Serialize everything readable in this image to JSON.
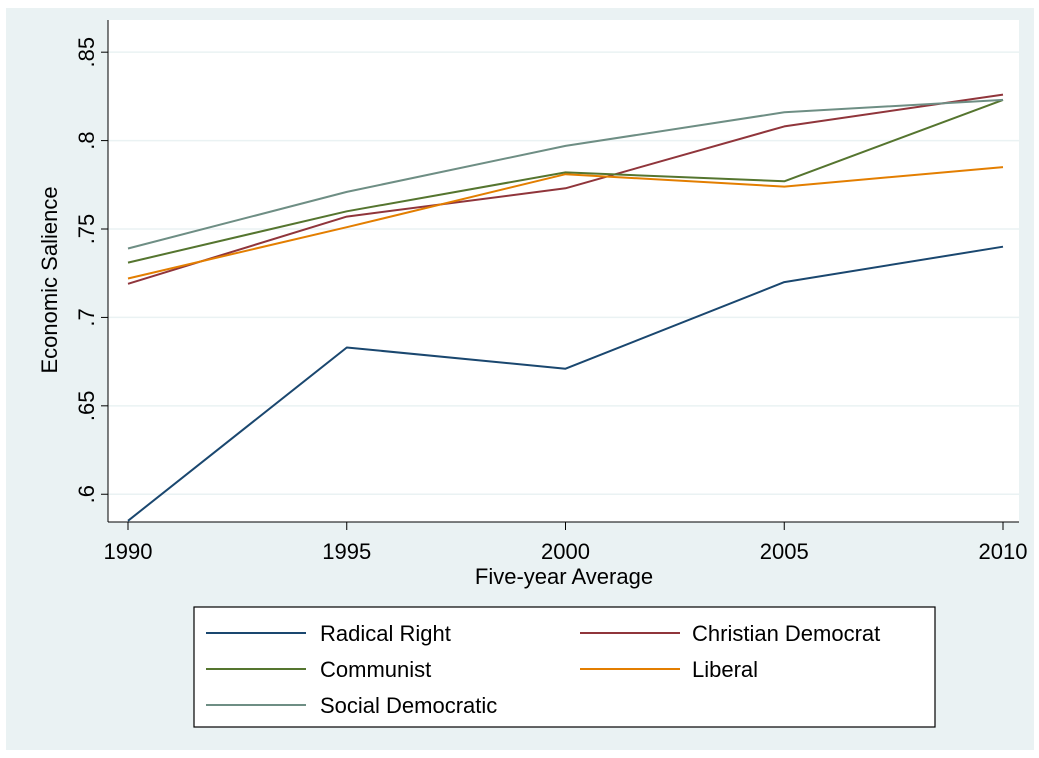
{
  "chart_data": {
    "type": "line",
    "x": [
      1990,
      1995,
      2000,
      2005,
      2010
    ],
    "xticks": [
      "1990",
      "1995",
      "2000",
      "2005",
      "2010"
    ],
    "yticks": [
      ".6",
      ".65",
      ".7",
      ".75",
      ".8",
      ".85"
    ],
    "ytick_values": [
      0.6,
      0.65,
      0.7,
      0.75,
      0.8,
      0.85
    ],
    "xlabel": "Five-year Average",
    "ylabel": "Economic Salience",
    "xlim": [
      1990,
      2010
    ],
    "ylim": [
      0.5843,
      0.8682
    ],
    "grid": true,
    "legend_position": "bottom",
    "series": [
      {
        "name": "Radical Right",
        "color": "#1a476f",
        "values": [
          0.585,
          0.683,
          0.671,
          0.72,
          0.74
        ]
      },
      {
        "name": "Christian Democrat",
        "color": "#90353b",
        "values": [
          0.719,
          0.757,
          0.773,
          0.808,
          0.826
        ]
      },
      {
        "name": "Communist",
        "color": "#55752f",
        "values": [
          0.731,
          0.76,
          0.782,
          0.777,
          0.823
        ]
      },
      {
        "name": "Liberal",
        "color": "#e37e00",
        "values": [
          0.722,
          0.751,
          0.781,
          0.774,
          0.785
        ]
      },
      {
        "name": "Social Democratic",
        "color": "#6e8e84",
        "values": [
          0.739,
          0.771,
          0.797,
          0.816,
          0.823
        ]
      }
    ]
  }
}
